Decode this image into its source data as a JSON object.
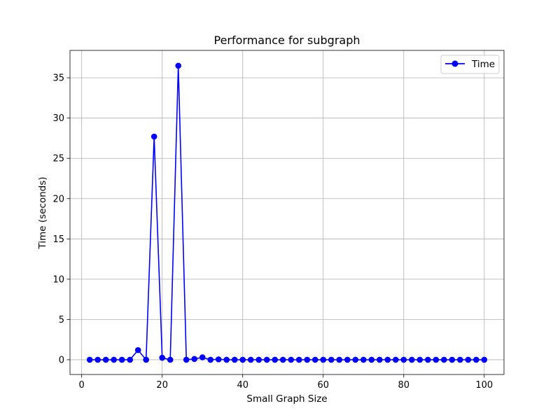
{
  "chart_data": {
    "type": "line",
    "title": "Performance for subgraph",
    "xlabel": "Small Graph Size",
    "ylabel": "Time (seconds)",
    "xlim": [
      -2.9,
      104.9
    ],
    "ylim": [
      -1.83,
      38.4
    ],
    "xticks": [
      0,
      20,
      40,
      60,
      80,
      100
    ],
    "yticks": [
      0,
      5,
      10,
      15,
      20,
      25,
      30,
      35
    ],
    "grid": true,
    "legend_position": "top-right",
    "series": [
      {
        "name": "Time",
        "color": "#0000ff",
        "marker": "circle",
        "x": [
          2,
          4,
          6,
          8,
          10,
          12,
          14,
          16,
          18,
          20,
          22,
          24,
          26,
          28,
          30,
          32,
          34,
          36,
          38,
          40,
          42,
          44,
          46,
          48,
          50,
          52,
          54,
          56,
          58,
          60,
          62,
          64,
          66,
          68,
          70,
          72,
          74,
          76,
          78,
          80,
          82,
          84,
          86,
          88,
          90,
          92,
          94,
          96,
          98,
          100
        ],
        "y": [
          0,
          0,
          0,
          0,
          0,
          0,
          1.2,
          0,
          27.7,
          0.25,
          0,
          36.5,
          0,
          0.1,
          0.3,
          0,
          0.05,
          0,
          0,
          0,
          0,
          0,
          0,
          0,
          0,
          0,
          0,
          0,
          0,
          0,
          0,
          0,
          0,
          0,
          0,
          0,
          0,
          0,
          0,
          0,
          0,
          0,
          0,
          0,
          0,
          0,
          0,
          0,
          0,
          0
        ]
      }
    ]
  }
}
